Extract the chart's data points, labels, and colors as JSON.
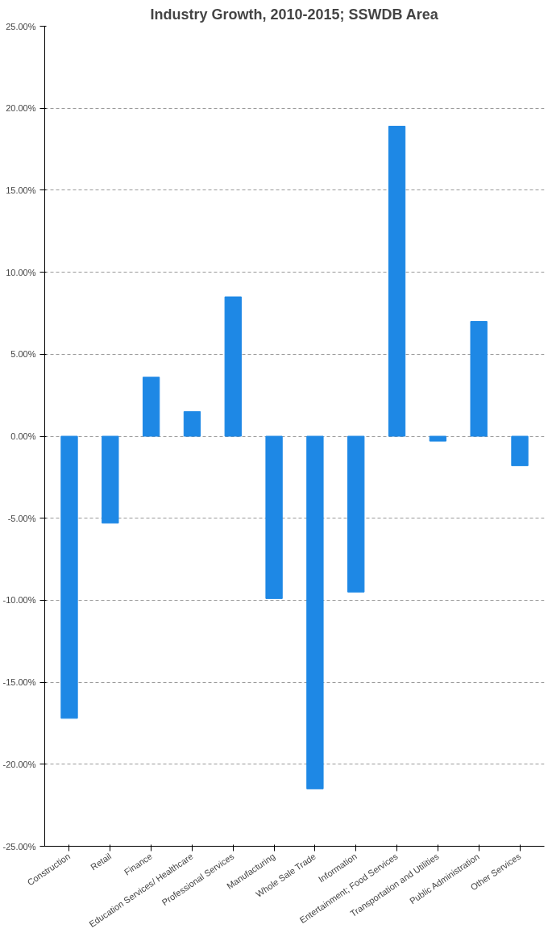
{
  "chart_data": {
    "type": "bar",
    "title": "Industry Growth, 2010-2015; SSWDB Area",
    "categories": [
      "Construction",
      "Retail",
      "Finance",
      "Education Services/ Healthcare",
      "Professional Services",
      "Manufacturing",
      "Whole Sale Trade",
      "Information",
      "Entertainment; Food Services",
      "Transportation and Utilities",
      "Public Administration",
      "Other Services"
    ],
    "values": [
      -17.2,
      -5.3,
      3.6,
      1.5,
      8.5,
      -9.9,
      -21.5,
      -9.5,
      18.9,
      -0.3,
      7.0,
      -1.8
    ],
    "color": "#1e88e5",
    "ylim": [
      -25,
      25
    ],
    "yticks": [
      {
        "value": -25,
        "label": "-25.00%"
      },
      {
        "value": -20,
        "label": "-20.00%"
      },
      {
        "value": -15,
        "label": "-15.00%"
      },
      {
        "value": -10,
        "label": "-10.00%"
      },
      {
        "value": -5,
        "label": "-5.00%"
      },
      {
        "value": 0,
        "label": "0.00%"
      },
      {
        "value": 5,
        "label": "5.00%"
      },
      {
        "value": 10,
        "label": "10.00%"
      },
      {
        "value": 15,
        "label": "15.00%"
      },
      {
        "value": 20,
        "label": "20.00%"
      },
      {
        "value": 25,
        "label": "25.00%"
      }
    ],
    "grid": "y"
  }
}
